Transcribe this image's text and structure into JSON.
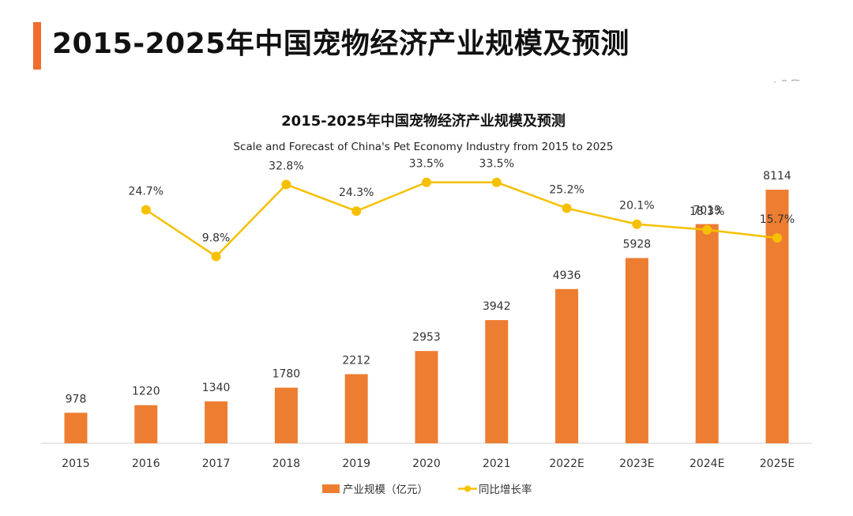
{
  "header": {
    "title": "2015-2025年中国宠物经济产业规模及预测"
  },
  "colors": {
    "accent": "#ef6b2e",
    "bar": "#ed7d31",
    "line": "#f5c000",
    "axis": "#d0d0d0"
  },
  "chart_data": {
    "type": "bar",
    "title": "2015-2025年中国宠物经济产业规模及预测",
    "subtitle": "Scale and Forecast of China's Pet Economy Industry from 2015 to 2025",
    "categories": [
      "2015",
      "2016",
      "2017",
      "2018",
      "2019",
      "2020",
      "2021",
      "2022E",
      "2023E",
      "2024E",
      "2025E"
    ],
    "series": [
      {
        "name": "产业规模（亿元）",
        "type": "bar",
        "values": [
          978,
          1220,
          1340,
          1780,
          2212,
          2953,
          3942,
          4936,
          5928,
          7013,
          8114
        ]
      },
      {
        "name": "同比增长率",
        "type": "line",
        "values": [
          null,
          24.7,
          9.8,
          32.8,
          24.3,
          33.5,
          33.5,
          25.2,
          20.1,
          18.3,
          15.7
        ],
        "labels": [
          "",
          "24.7%",
          "9.8%",
          "32.8%",
          "24.3%",
          "33.5%",
          "33.5%",
          "25.2%",
          "20.1%",
          "18.3%",
          "15.7%"
        ]
      }
    ],
    "ylim": [
      0,
      9000
    ],
    "y2lim": [
      -50,
      40
    ],
    "grid": false,
    "legend": "bottom-center"
  }
}
